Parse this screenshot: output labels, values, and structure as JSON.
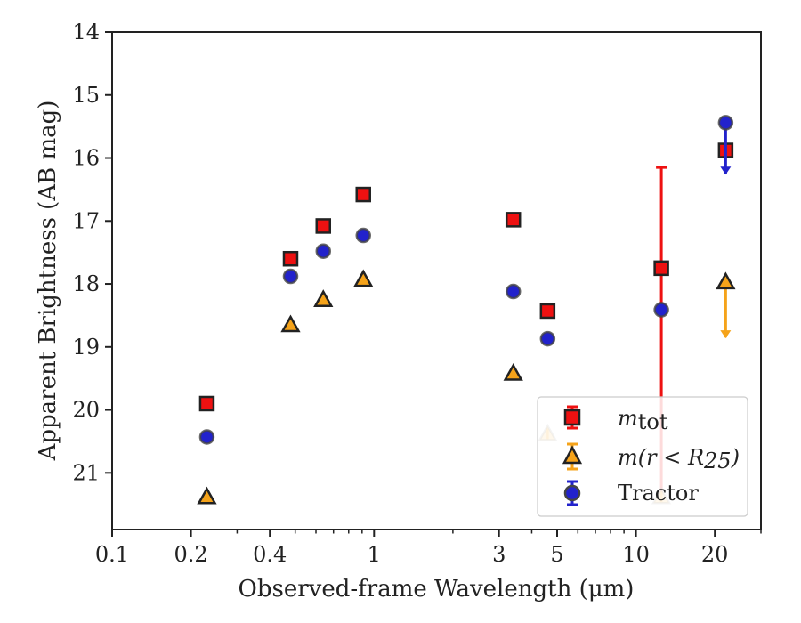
{
  "chart_data": {
    "type": "scatter",
    "x_scale": "log",
    "y_inverted": true,
    "xlabel": "Observed-frame Wavelength (μm)",
    "ylabel": "Apparent Brightness (AB mag)",
    "xlim": [
      0.1,
      30
    ],
    "ylim": [
      14,
      21.9
    ],
    "x_ticks": [
      {
        "value": 0.1,
        "label": "0.1"
      },
      {
        "value": 0.2,
        "label": "0.2"
      },
      {
        "value": 0.4,
        "label": "0.4"
      },
      {
        "value": 1,
        "label": "1"
      },
      {
        "value": 3,
        "label": "3"
      },
      {
        "value": 5,
        "label": "5"
      },
      {
        "value": 10,
        "label": "10"
      },
      {
        "value": 20,
        "label": "20"
      }
    ],
    "x_minor_ticks": [
      0.3,
      0.5,
      0.6,
      0.7,
      0.8,
      0.9,
      2,
      4,
      6,
      7,
      8,
      9,
      30
    ],
    "y_ticks": [
      14,
      15,
      16,
      17,
      18,
      19,
      20,
      21
    ],
    "legend_position": "lower-right",
    "series": [
      {
        "name": "m_tot",
        "marker": "square",
        "color": "#ee1111",
        "edge": "#222222",
        "points": [
          {
            "x": 0.23,
            "y": 19.9
          },
          {
            "x": 0.48,
            "y": 17.6
          },
          {
            "x": 0.64,
            "y": 17.08
          },
          {
            "x": 0.91,
            "y": 16.58
          },
          {
            "x": 3.4,
            "y": 16.98
          },
          {
            "x": 4.6,
            "y": 18.43
          },
          {
            "x": 12.5,
            "y": 17.75,
            "yerr": [
              1.6,
              3.6
            ]
          },
          {
            "x": 22.0,
            "y": 15.88
          }
        ]
      },
      {
        "name": "m(r<R25)",
        "marker": "triangle",
        "color": "#f5a31a",
        "edge": "#222222",
        "points": [
          {
            "x": 0.23,
            "y": 21.38
          },
          {
            "x": 0.48,
            "y": 18.65
          },
          {
            "x": 0.64,
            "y": 18.25
          },
          {
            "x": 0.91,
            "y": 17.93
          },
          {
            "x": 3.4,
            "y": 19.42
          },
          {
            "x": 4.6,
            "y": 20.38
          },
          {
            "x": 12.5,
            "y": 21.38
          },
          {
            "x": 22.0,
            "y": 17.97,
            "upper_limit_to": 18.85
          }
        ]
      },
      {
        "name": "Tractor",
        "marker": "circle",
        "color": "#2222cc",
        "edge": "#444444",
        "points": [
          {
            "x": 0.23,
            "y": 20.43
          },
          {
            "x": 0.48,
            "y": 17.88
          },
          {
            "x": 0.64,
            "y": 17.48
          },
          {
            "x": 0.91,
            "y": 17.23
          },
          {
            "x": 3.4,
            "y": 18.12
          },
          {
            "x": 4.6,
            "y": 18.87
          },
          {
            "x": 12.5,
            "y": 18.41
          },
          {
            "x": 22.0,
            "y": 15.44,
            "upper_limit_to": 16.25
          }
        ]
      }
    ]
  },
  "legend": {
    "m_tot_base": "m",
    "m_tot_sub": "tot",
    "m_r_pre": "m(r < R",
    "m_r_sub": "25",
    "m_r_post": ")",
    "tractor": "Tractor"
  }
}
